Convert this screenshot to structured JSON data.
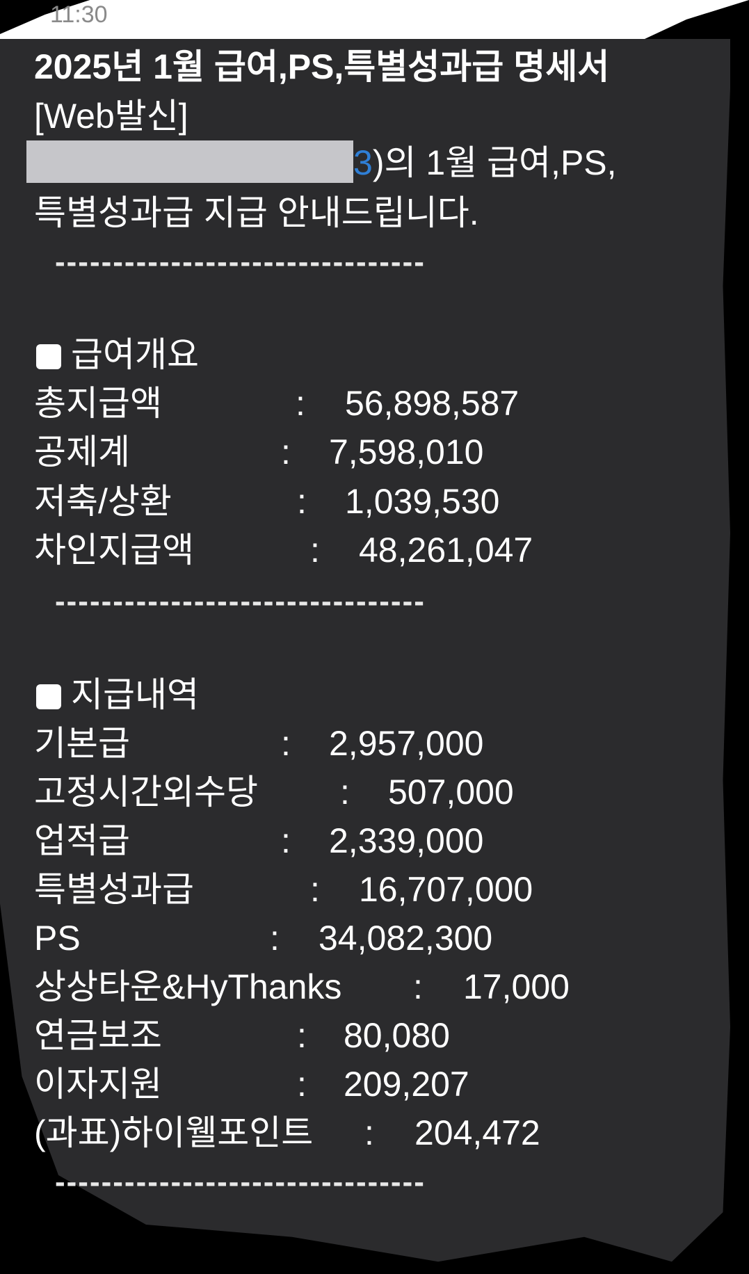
{
  "status_bar": {
    "time": "11:30"
  },
  "message": {
    "title": "2025년 1월 급여,PS,특별성과급 명세서",
    "subtitle": "[Web발신]",
    "intro_visible_digit": "3",
    "intro_rest": ")의 1월 급여,PS,",
    "intro_line2": "특별성과급 지급 안내드립니다.",
    "divider": "--------------------------------",
    "summary": {
      "heading": "급여개요",
      "rows": [
        {
          "label": "총지급액",
          "value": "56,898,587"
        },
        {
          "label": "공제계",
          "value": "7,598,010"
        },
        {
          "label": "저축/상환",
          "value": "1,039,530"
        },
        {
          "label": "차인지급액",
          "value": "48,261,047"
        }
      ]
    },
    "payments": {
      "heading": "지급내역",
      "rows": [
        {
          "label": "기본급",
          "value": "2,957,000"
        },
        {
          "label": "고정시간외수당",
          "value": "507,000"
        },
        {
          "label": "업적급",
          "value": "2,339,000"
        },
        {
          "label": "특별성과급",
          "value": "16,707,000"
        },
        {
          "label": "PS",
          "value": "34,082,300"
        },
        {
          "label": "상상타운&HyThanks",
          "value": "17,000"
        },
        {
          "label": "연금보조",
          "value": "80,080"
        },
        {
          "label": "이자지원",
          "value": "209,207"
        },
        {
          "label": "(과표)하이웰포인트",
          "value": "204,472"
        }
      ]
    },
    "separator": ":"
  }
}
